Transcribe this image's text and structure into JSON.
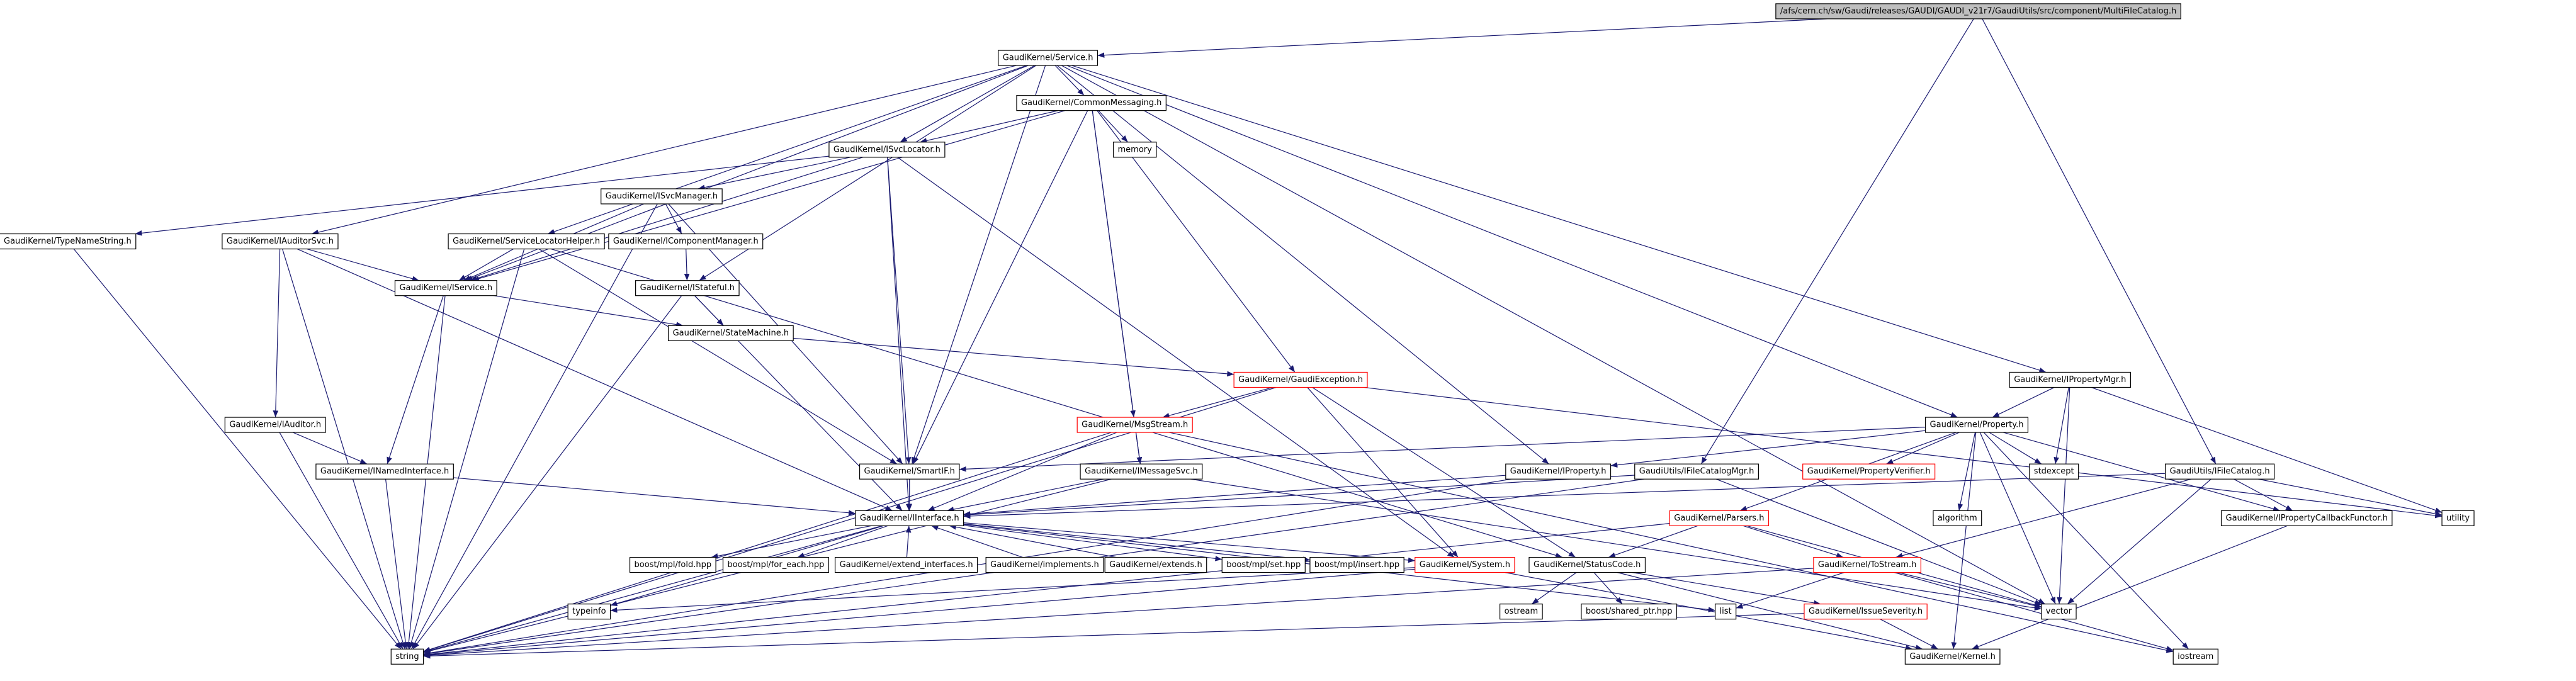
{
  "nodes": [
    {
      "label": "/afs/cern.ch/sw/Gaudi/releases/GAUDI/GAUDI_v21r7/GaudiUtils/src/component/MultiFileCatalog.h"
    },
    {
      "label": "GaudiKernel/Service.h"
    },
    {
      "label": "GaudiKernel/CommonMessaging.h"
    },
    {
      "label": "memory"
    },
    {
      "label": "GaudiKernel/ISvcLocator.h"
    },
    {
      "label": "GaudiKernel/ISvcManager.h"
    },
    {
      "label": "GaudiKernel/TypeNameString.h"
    },
    {
      "label": "GaudiKernel/IAuditorSvc.h"
    },
    {
      "label": "GaudiKernel/IComponentManager.h"
    },
    {
      "label": "GaudiKernel/ServiceLocatorHelper.h"
    },
    {
      "label": "GaudiKernel/IService.h"
    },
    {
      "label": "GaudiKernel/IStateful.h"
    },
    {
      "label": "GaudiKernel/StateMachine.h"
    },
    {
      "label": "GaudiKernel/GaudiException.h"
    },
    {
      "label": "GaudiKernel/IAuditor.h"
    },
    {
      "label": "GaudiKernel/MsgStream.h"
    },
    {
      "label": "GaudiKernel/INamedInterface.h"
    },
    {
      "label": "GaudiKernel/SmartIF.h"
    },
    {
      "label": "GaudiKernel/IMessageSvc.h"
    },
    {
      "label": "GaudiKernel/IInterface.h"
    },
    {
      "label": "GaudiKernel/IProperty.h"
    },
    {
      "label": "GaudiKernel/IPropertyMgr.h"
    },
    {
      "label": "GaudiKernel/Property.h"
    },
    {
      "label": "GaudiKernel/PropertyVerifier.h"
    },
    {
      "label": "stdexcept"
    },
    {
      "label": "utility"
    },
    {
      "label": "GaudiUtils/IFileCatalogMgr.h"
    },
    {
      "label": "GaudiUtils/IFileCatalog.h"
    },
    {
      "label": "GaudiKernel/IPropertyCallbackFunctor.h"
    },
    {
      "label": "algorithm"
    },
    {
      "label": "GaudiKernel/Parsers.h"
    },
    {
      "label": "boost/mpl/fold.hpp"
    },
    {
      "label": "boost/mpl/for_each.hpp"
    },
    {
      "label": "GaudiKernel/extend_interfaces.h"
    },
    {
      "label": "GaudiKernel/implements.h"
    },
    {
      "label": "GaudiKernel/extends.h"
    },
    {
      "label": "boost/mpl/set.hpp"
    },
    {
      "label": "boost/mpl/insert.hpp"
    },
    {
      "label": "GaudiKernel/System.h"
    },
    {
      "label": "GaudiKernel/StatusCode.h"
    },
    {
      "label": "GaudiKernel/ToStream.h"
    },
    {
      "label": "typeinfo"
    },
    {
      "label": "ostream"
    },
    {
      "label": "boost/shared_ptr.hpp"
    },
    {
      "label": "list"
    },
    {
      "label": "vector"
    },
    {
      "label": "GaudiKernel/IssueSeverity.h"
    },
    {
      "label": "string"
    },
    {
      "label": "GaudiKernel/Kernel.h"
    },
    {
      "label": "iostream"
    }
  ]
}
